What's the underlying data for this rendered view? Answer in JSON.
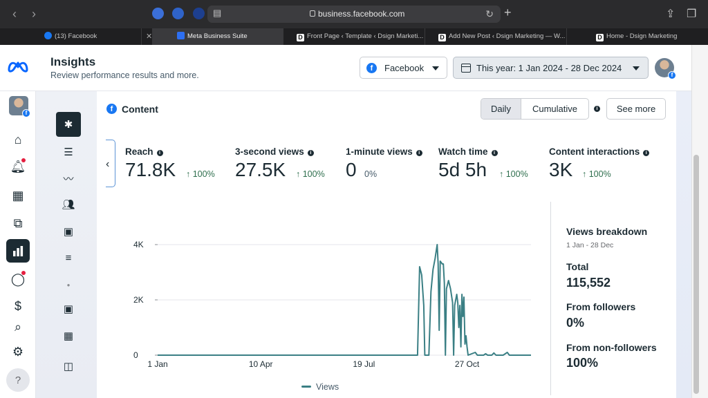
{
  "browser": {
    "url": "business.facebook.com",
    "tabs": [
      {
        "label": "(13) Facebook",
        "fav": "fb"
      },
      {
        "label": "Meta Business Suite",
        "fav": "meta"
      },
      {
        "label": "Front Page ‹ Template ‹ Dsign Marketi...",
        "fav": "d"
      },
      {
        "label": "Add New Post ‹ Dsign Marketing — W...",
        "fav": "d"
      },
      {
        "label": "Home - Dsign Marketing",
        "fav": "d"
      }
    ]
  },
  "header": {
    "title": "Insights",
    "subtitle": "Review performance results and more.",
    "platform_dropdown": "Facebook",
    "date_range": "This year: 1 Jan 2024 - 28 Dec 2024"
  },
  "content": {
    "title": "Content",
    "toggle": {
      "daily": "Daily",
      "cumulative": "Cumulative"
    },
    "see_more": "See more",
    "metrics": [
      {
        "label": "Reach",
        "value": "71.8K",
        "change": "↑ 100%"
      },
      {
        "label": "3-second views",
        "value": "27.5K",
        "change": "↑ 100%"
      },
      {
        "label": "1-minute views",
        "value": "0",
        "change": "0%"
      },
      {
        "label": "Watch time",
        "value": "5d 5h",
        "change": "↑ 100%"
      },
      {
        "label": "Content interactions",
        "value": "3K",
        "change": "↑ 100%"
      }
    ]
  },
  "breakdown": {
    "title": "Views breakdown",
    "range": "1 Jan - 28 Dec",
    "total_label": "Total",
    "total_value": "115,552",
    "followers_label": "From followers",
    "followers_value": "0%",
    "nonfollowers_label": "From non-followers",
    "nonfollowers_value": "100%"
  },
  "chart_data": {
    "type": "line",
    "series": [
      {
        "name": "Views",
        "color": "#3a7f84",
        "points": [
          [
            "2024-01-01",
            0
          ],
          [
            "2024-09-09",
            0
          ],
          [
            "2024-09-11",
            3200
          ],
          [
            "2024-09-13",
            2900
          ],
          [
            "2024-09-15",
            1800
          ],
          [
            "2024-09-16",
            0
          ],
          [
            "2024-09-20",
            0
          ],
          [
            "2024-09-22",
            2300
          ],
          [
            "2024-09-24",
            3100
          ],
          [
            "2024-09-26",
            3500
          ],
          [
            "2024-09-28",
            4000
          ],
          [
            "2024-09-29",
            3300
          ],
          [
            "2024-09-30",
            900
          ],
          [
            "2024-10-01",
            3400
          ],
          [
            "2024-10-03",
            3300
          ],
          [
            "2024-10-04",
            3300
          ],
          [
            "2024-10-05",
            2600
          ],
          [
            "2024-10-06",
            0
          ],
          [
            "2024-10-07",
            2400
          ],
          [
            "2024-10-09",
            2700
          ],
          [
            "2024-10-11",
            2400
          ],
          [
            "2024-10-13",
            1900
          ],
          [
            "2024-10-14",
            0
          ],
          [
            "2024-10-15",
            1800
          ],
          [
            "2024-10-17",
            2200
          ],
          [
            "2024-10-18",
            1900
          ],
          [
            "2024-10-19",
            1000
          ],
          [
            "2024-10-20",
            1800
          ],
          [
            "2024-10-21",
            300
          ],
          [
            "2024-10-22",
            2200
          ],
          [
            "2024-10-23",
            1400
          ],
          [
            "2024-10-24",
            2100
          ],
          [
            "2024-10-25",
            400
          ],
          [
            "2024-10-26",
            700
          ],
          [
            "2024-10-27",
            300
          ],
          [
            "2024-10-28",
            0
          ],
          [
            "2024-11-04",
            100
          ],
          [
            "2024-11-06",
            0
          ],
          [
            "2024-11-12",
            0
          ],
          [
            "2024-11-14",
            50
          ],
          [
            "2024-11-16",
            0
          ],
          [
            "2024-11-20",
            0
          ],
          [
            "2024-11-22",
            80
          ],
          [
            "2024-11-24",
            0
          ],
          [
            "2024-12-01",
            0
          ],
          [
            "2024-12-05",
            100
          ],
          [
            "2024-12-07",
            0
          ],
          [
            "2024-12-28",
            0
          ]
        ]
      }
    ],
    "x_ticks": [
      [
        "2024-01-01",
        "1 Jan"
      ],
      [
        "2024-04-10",
        "10 Apr"
      ],
      [
        "2024-07-19",
        "19 Jul"
      ],
      [
        "2024-10-27",
        "27 Oct"
      ]
    ],
    "xlim": [
      "2024-01-01",
      "2024-12-28"
    ],
    "y_ticks": [
      0,
      2000,
      4000
    ],
    "y_tick_labels": [
      "0",
      "2K",
      "4K"
    ],
    "ylim": [
      0,
      4000
    ],
    "grid": true,
    "legend": "bottom"
  }
}
